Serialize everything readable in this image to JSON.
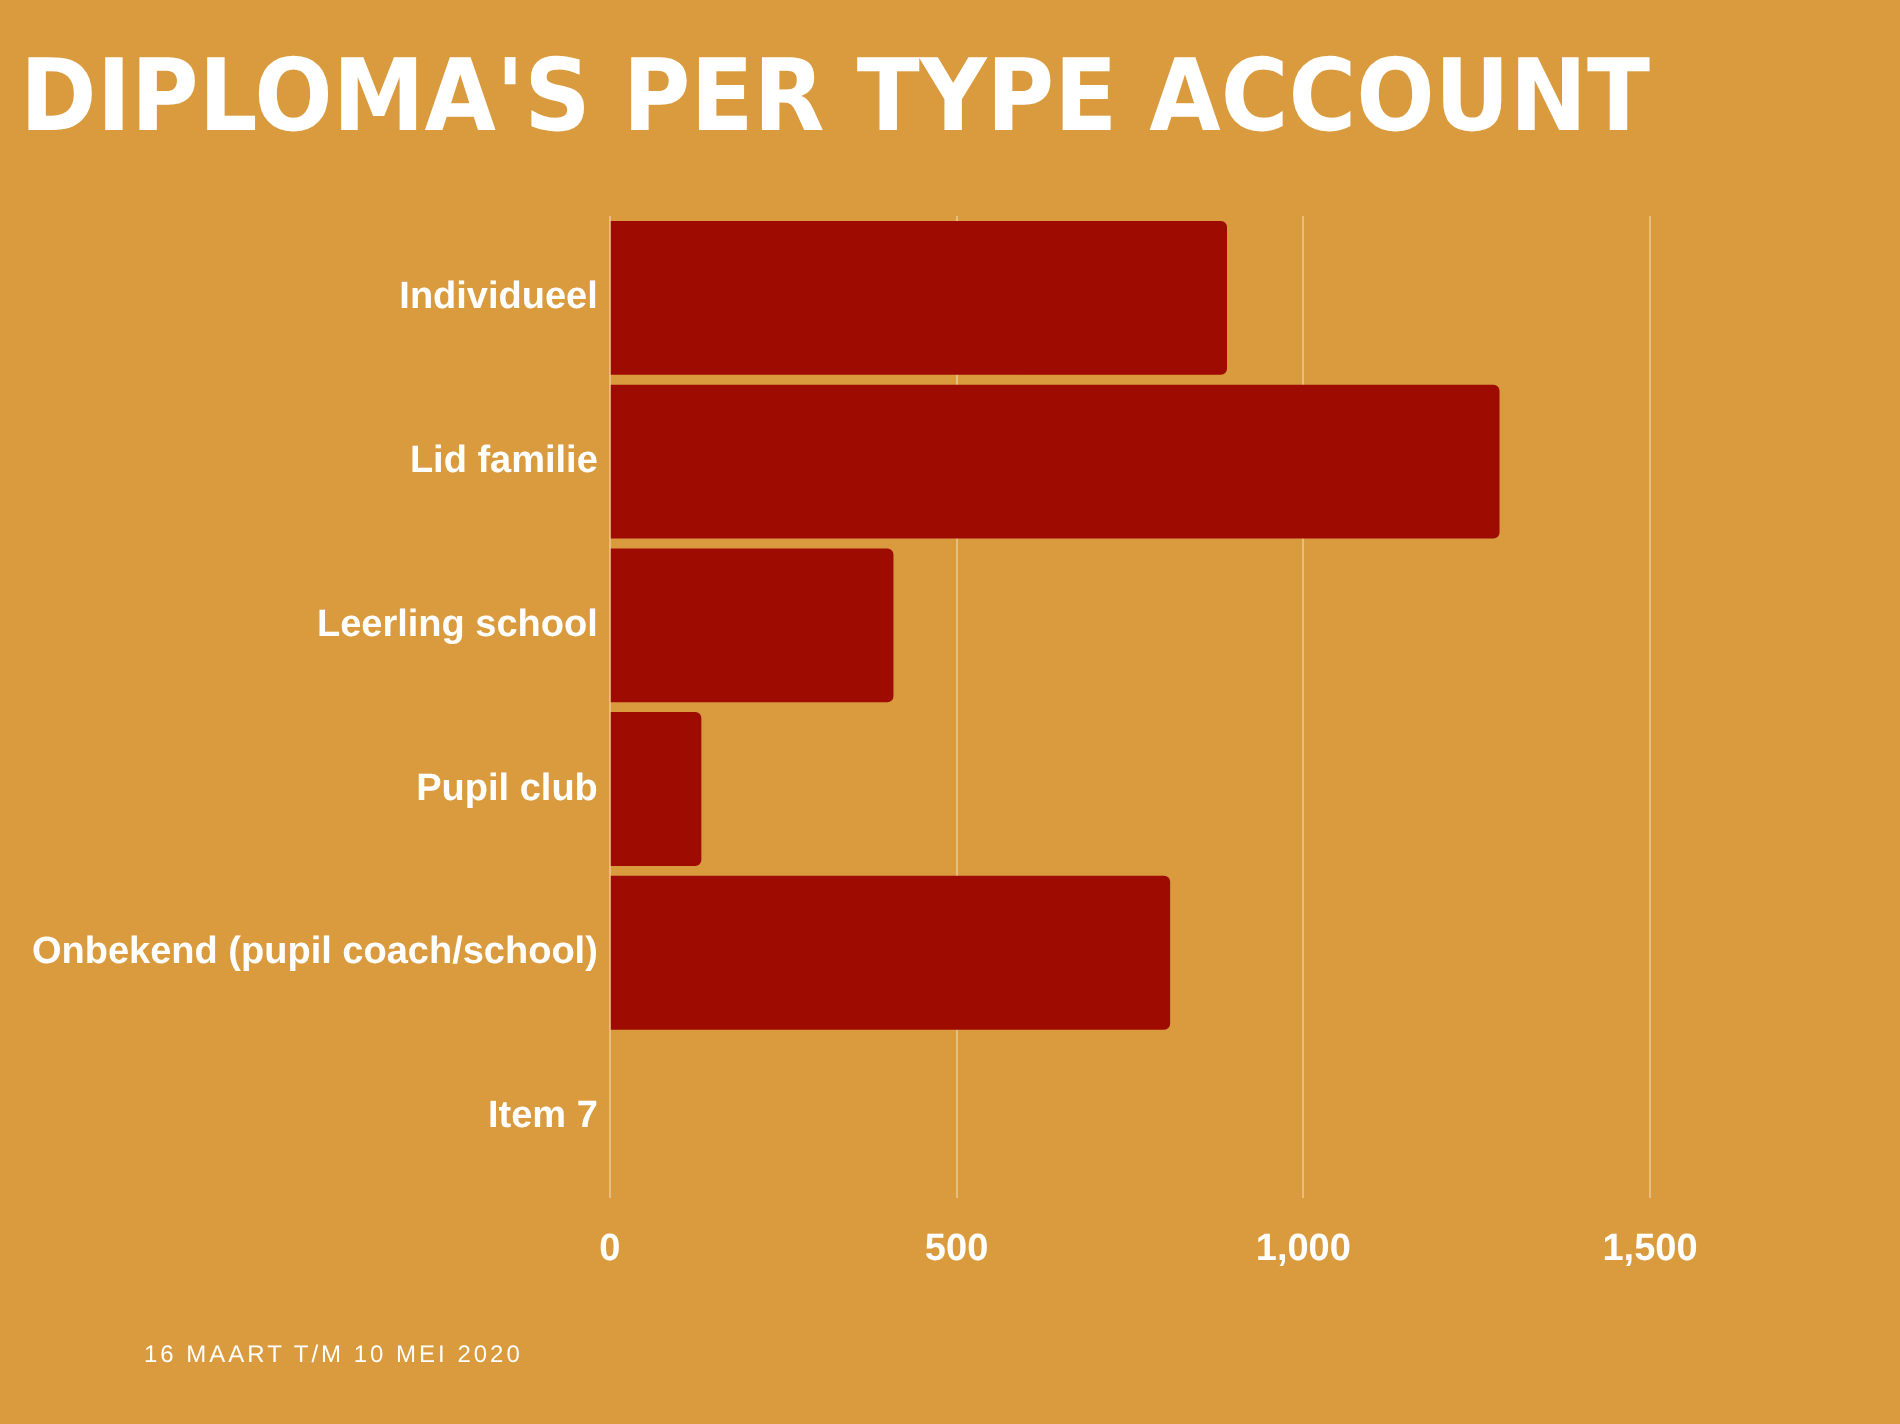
{
  "chart_data": {
    "type": "bar",
    "orientation": "horizontal",
    "title": "DIPLOMA'S PER TYPE ACCOUNT",
    "categories": [
      "Individueel",
      "Lid familie",
      "Leerling school",
      "Pupil club",
      "Onbekend (pupil coach/school)",
      "Item 7"
    ],
    "values": [
      890,
      1283,
      409,
      132,
      808,
      null
    ],
    "color": "#9e0b00",
    "xlim": [
      0,
      1500
    ],
    "xticks": [
      0,
      {
        "value": 500,
        "label": "500"
      },
      {
        "value": 1000,
        "label": "1,000"
      },
      {
        "value": 1500,
        "label": "1,500"
      }
    ],
    "grid": "x",
    "legend": false,
    "annotations": [
      "16 MAART T/M 10 MEI 2020"
    ]
  }
}
